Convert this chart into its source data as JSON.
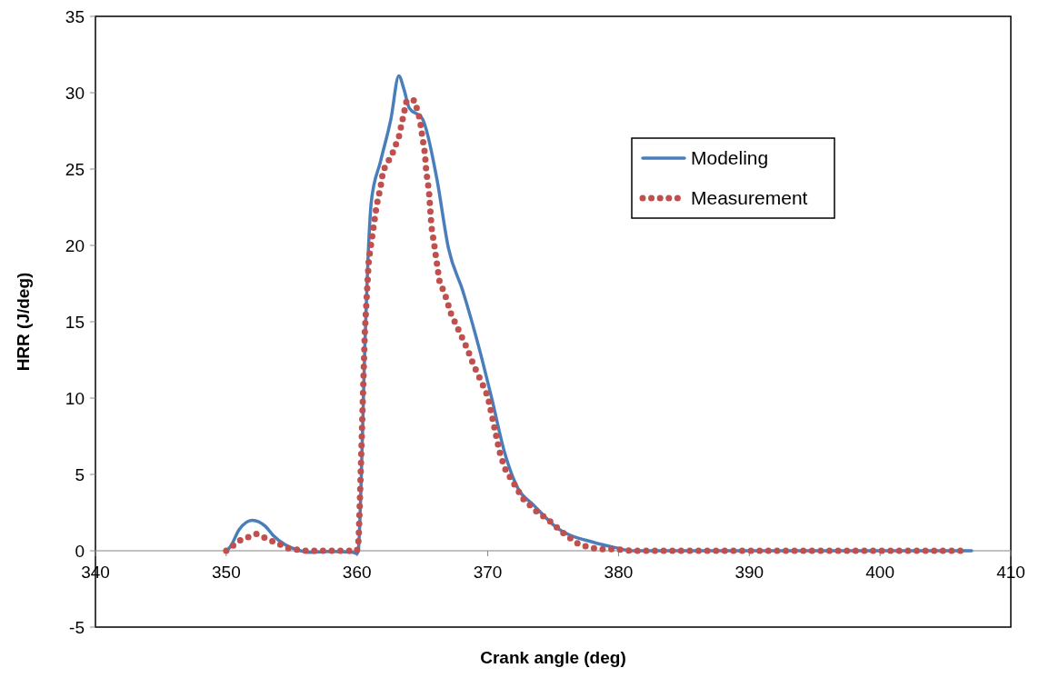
{
  "chart_data": {
    "type": "line",
    "xlabel": "Crank angle (deg)",
    "ylabel": "HRR (J/deg)",
    "xlim": [
      340,
      410
    ],
    "xticks": [
      340,
      350,
      360,
      370,
      380,
      390,
      400,
      410
    ],
    "ylim": [
      -5,
      35
    ],
    "yticks": [
      -5,
      0,
      5,
      10,
      15,
      20,
      25,
      30,
      35
    ],
    "grid": false,
    "legend": "top right",
    "series": [
      {
        "name": "Modeling",
        "color": "#4a7ebb",
        "line_style": "solid",
        "x": [
          350,
          350.3,
          351,
          352,
          353,
          353.6,
          354.5,
          355.7,
          356.3,
          358,
          359.7,
          360,
          360.1,
          360.4,
          360.6,
          360.85,
          361.1,
          361.8,
          362.6,
          363.2,
          363.6,
          364,
          365,
          366.1,
          367,
          368.1,
          369.3,
          370.3,
          371.3,
          372.3,
          373.5,
          375.3,
          378.1,
          379.8,
          381,
          390,
          400,
          407
        ],
        "values": [
          0,
          0.25,
          1.4,
          2.0,
          1.6,
          1.0,
          0.4,
          0,
          -0.1,
          -0.05,
          -0.1,
          -0.2,
          0,
          7,
          13.4,
          19.3,
          22.9,
          25.5,
          28.3,
          31.1,
          30.2,
          29.0,
          28.3,
          24.4,
          19.8,
          17.0,
          13.4,
          10.0,
          6.4,
          4.1,
          3.0,
          1.5,
          0.55,
          0.2,
          0,
          0,
          0,
          0
        ]
      },
      {
        "name": "Measurement",
        "color": "#c0504d",
        "line_style": "dotted",
        "x": [
          350,
          351.1,
          352.3,
          353.6,
          354.8,
          356.1,
          358,
          360,
          360.1,
          360.15,
          360.3,
          360.45,
          360.6,
          360.75,
          360.9,
          361.1,
          361.3,
          361.5,
          361.8,
          362,
          362.7,
          363.2,
          363.5,
          363.8,
          364.4,
          364.8,
          365,
          365.2,
          365.3,
          365.5,
          365.7,
          365.9,
          366.1,
          366.3,
          366.8,
          367.2,
          367.8,
          368.4,
          368.9,
          369.5,
          370,
          370.3,
          370.6,
          370.9,
          371.3,
          372,
          372.7,
          373.7,
          374.8,
          375.9,
          377,
          378.4,
          379.8,
          381,
          390,
          400,
          406.5
        ],
        "values": [
          0,
          0.7,
          1.1,
          0.6,
          0.15,
          0,
          0,
          0,
          0.5,
          1.3,
          5.5,
          10,
          14.3,
          16.7,
          19.0,
          20.2,
          21.4,
          22.6,
          23.8,
          24.9,
          26.0,
          27.1,
          28.3,
          29.5,
          29.5,
          28.3,
          27.1,
          26.0,
          24.8,
          23.6,
          21.2,
          20.1,
          18.9,
          17.7,
          16.6,
          15.5,
          14.4,
          13.3,
          12.2,
          11.1,
          10.1,
          8.9,
          7.7,
          6.5,
          5.4,
          4.4,
          3.4,
          2.6,
          1.9,
          1.07,
          0.4,
          0.1,
          0.1,
          0,
          0,
          0,
          0
        ]
      }
    ]
  }
}
